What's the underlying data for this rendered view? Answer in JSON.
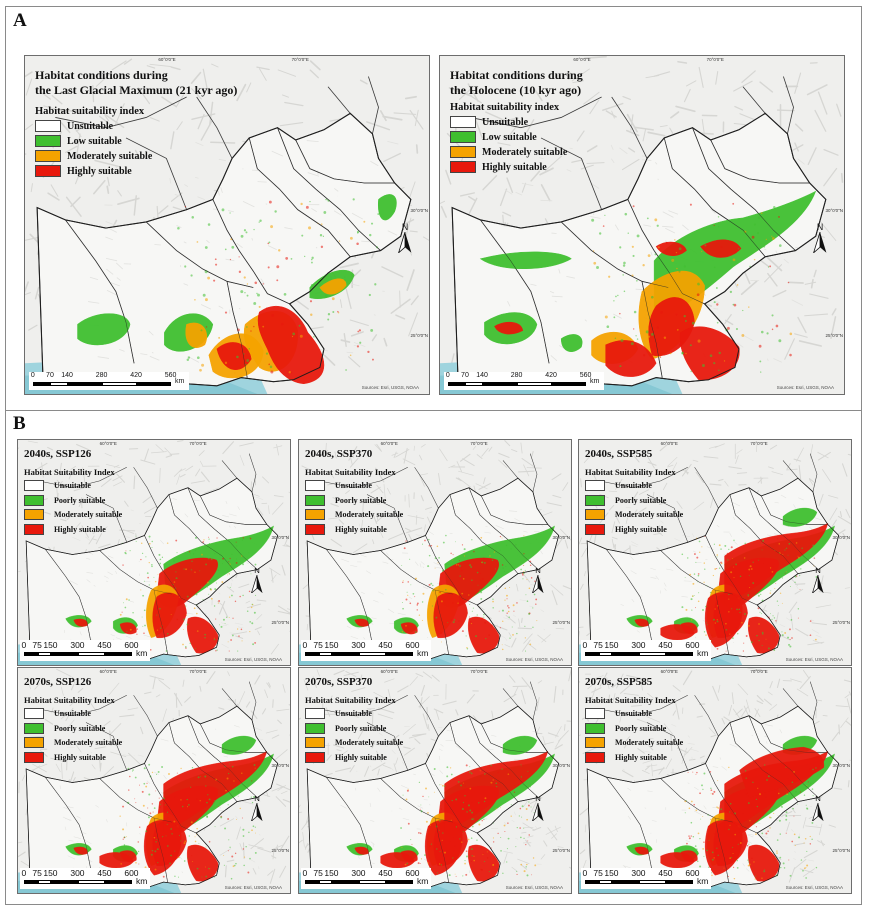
{
  "section_a": {
    "label": "A",
    "panels": [
      {
        "title_lines": [
          "Habitat conditions during",
          "the Last Glacial Maximum (21 kyr ago)"
        ],
        "legend_title": "Habitat suitability index",
        "legend": [
          {
            "label": "Unsuitable",
            "color": "#ffffff"
          },
          {
            "label": "Low suitable",
            "color": "#3fbf2f"
          },
          {
            "label": "Moderately suitable",
            "color": "#f5a300"
          },
          {
            "label": "Highly suitable",
            "color": "#e8180c"
          }
        ],
        "scale_ticks": [
          "0",
          "70",
          "140",
          "280",
          "420",
          "560"
        ],
        "scale_unit": "km",
        "source": "Sources: Esri, USGS, NOAA",
        "north": "N",
        "coords_top": [
          "60°0'0\"E",
          "70°0'0\"E"
        ],
        "coords_side": [
          "30°0'0\"N",
          "25°0'0\"N"
        ]
      },
      {
        "title_lines": [
          "Habitat conditions during",
          "the Holocene (10 kyr ago)"
        ],
        "legend_title": "Habitat suitability index",
        "legend": [
          {
            "label": "Unsuitable",
            "color": "#ffffff"
          },
          {
            "label": "Low suitable",
            "color": "#3fbf2f"
          },
          {
            "label": "Moderately suitable",
            "color": "#f5a300"
          },
          {
            "label": "Highly suitable",
            "color": "#e8180c"
          }
        ],
        "scale_ticks": [
          "0",
          "70",
          "140",
          "280",
          "420",
          "560"
        ],
        "scale_unit": "km",
        "source": "Sources: Esri, USGS, NOAA",
        "north": "N",
        "coords_top": [
          "60°0'0\"E",
          "70°0'0\"E"
        ],
        "coords_side": [
          "30°0'0\"N",
          "25°0'0\"N"
        ]
      }
    ]
  },
  "section_b": {
    "label": "B",
    "legend_title": "Habitat Suitability Index",
    "legend": [
      {
        "label": "Unsuitable",
        "color": "#ffffff"
      },
      {
        "label": "Poorly suitable",
        "color": "#3fbf2f"
      },
      {
        "label": "Moderately suitable",
        "color": "#f5a300"
      },
      {
        "label": "Highly suitable",
        "color": "#e8180c"
      }
    ],
    "scale_ticks": [
      "0",
      "75",
      "150",
      "300",
      "450",
      "600"
    ],
    "scale_unit": "km",
    "source": "Sources: Esri, USGS, NOAA",
    "north": "N",
    "coords_top": [
      "60°0'0\"E",
      "70°0'0\"E"
    ],
    "coords_side": [
      "30°0'0\"N",
      "25°0'0\"N"
    ],
    "panels": [
      {
        "title": "2040s, SSP126"
      },
      {
        "title": "2040s, SSP370"
      },
      {
        "title": "2040s, SSP585"
      },
      {
        "title": "2070s, SSP126"
      },
      {
        "title": "2070s, SSP370"
      },
      {
        "title": "2070s, SSP585"
      }
    ]
  }
}
